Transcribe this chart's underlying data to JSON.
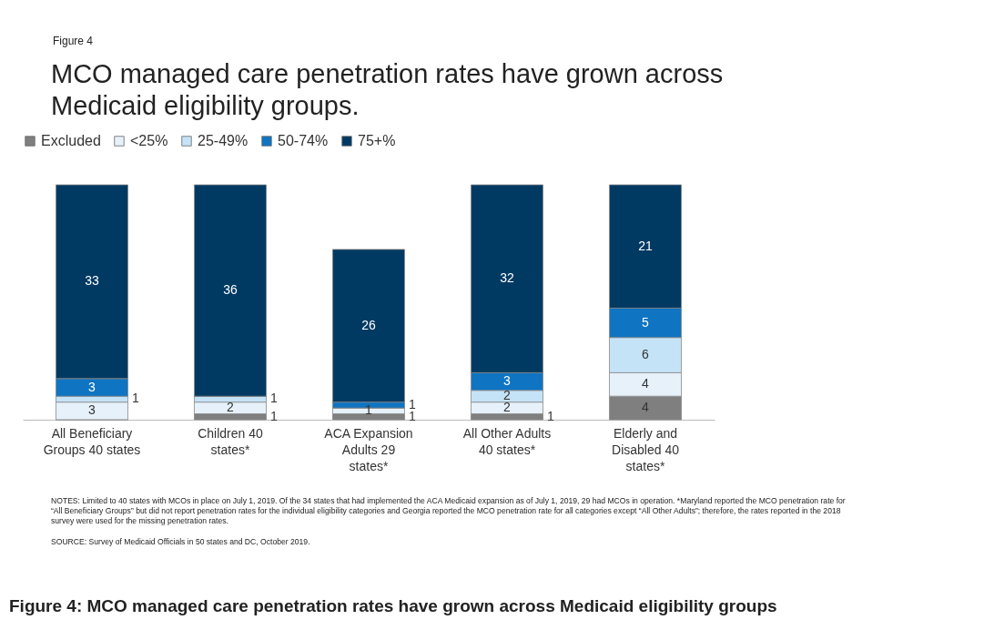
{
  "chart_data": {
    "type": "bar",
    "stacked": true,
    "title": "MCO managed care penetration rates have grown across Medicaid eligibility groups.",
    "categories": [
      "All Beneficiary Groups 40 states",
      "Children 40 states*",
      "ACA Expansion Adults 29 states*",
      "All Other Adults 40 states*",
      "Elderly and Disabled 40 states*"
    ],
    "series": [
      {
        "name": "Excluded",
        "color": "#7f7f7f",
        "values": [
          0,
          1,
          1,
          1,
          4
        ],
        "value_labels": [
          null,
          "1",
          "1",
          "1",
          "4"
        ]
      },
      {
        "name": "<25%",
        "color": "#e6f1fa",
        "values": [
          3,
          2,
          1,
          2,
          4
        ],
        "value_labels": [
          "3",
          "2",
          "1",
          "2",
          "4"
        ]
      },
      {
        "name": "25-49%",
        "color": "#c5e3f7",
        "values": [
          1,
          1,
          0,
          2,
          6
        ],
        "value_labels": [
          "1",
          "1",
          null,
          "2",
          "6"
        ]
      },
      {
        "name": "50-74%",
        "color": "#0f74c2",
        "values": [
          3,
          0,
          1,
          3,
          5
        ],
        "value_labels": [
          "3",
          null,
          "1",
          "3",
          "5"
        ]
      },
      {
        "name": "75+%",
        "color": "#003a63",
        "values": [
          33,
          36,
          26,
          32,
          21
        ],
        "value_labels": [
          "33",
          "36",
          "26",
          "32",
          "21"
        ]
      }
    ],
    "legend": "top",
    "annotations": [
      "Figure 4",
      "NOTES: Limited to 40 states with MCOs in place on July 1, 2019. Of the 34 states that had implemented the ACA Medicaid expansion as of July 1, 2019, 29 had MCOs in operation. *Maryland reported the MCO penetration rate for “All Beneficiary Groups” but did not report penetration rates for the individual eligibility categories and Georgia reported the MCO penetration rate for all categories except “All Other Adults”; therefore, the rates reported in the 2018 survey were used for the missing penetration rates.",
      "SOURCE: Survey of Medicaid Officials in 50 states and DC, October 2019.",
      "Figure 4: MCO managed care penetration rates have grown across Medicaid eligibility groups"
    ]
  }
}
